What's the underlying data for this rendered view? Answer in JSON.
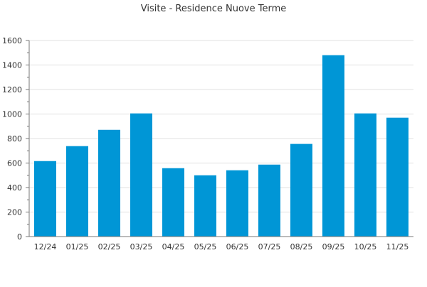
{
  "chart_data": {
    "type": "bar",
    "title": "Visite - Residence Nuove Terme",
    "xlabel": "",
    "ylabel": "",
    "categories": [
      "12/24",
      "01/25",
      "02/25",
      "03/25",
      "04/25",
      "05/25",
      "06/25",
      "07/25",
      "08/25",
      "09/25",
      "10/25",
      "11/25"
    ],
    "values": [
      616,
      738,
      871,
      1005,
      558,
      500,
      541,
      587,
      756,
      1480,
      1005,
      970
    ],
    "ylim": [
      0,
      1600
    ],
    "yticks": [
      0,
      200,
      400,
      600,
      800,
      1000,
      1200,
      1400,
      1600
    ],
    "grid": true,
    "legend": "none",
    "colors": {
      "bar": "#0096d6",
      "grid": "#e0e0e0",
      "axis": "#777777"
    }
  }
}
